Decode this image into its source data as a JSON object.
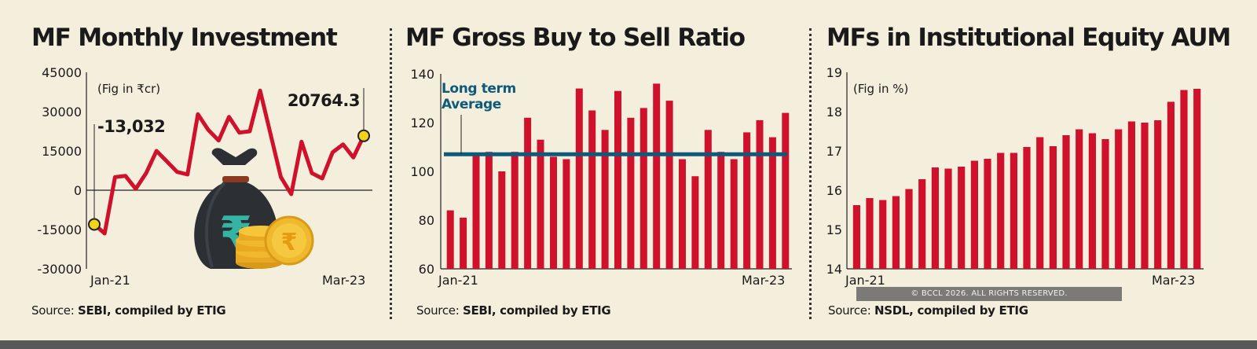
{
  "colors": {
    "bar": "#d0112b",
    "line": "#d0112b",
    "avg": "#0d5a7a",
    "marker": "#f2d21b",
    "text": "#1a1a1a"
  },
  "panels": [
    {
      "title": "MF Monthly Investment",
      "source_label": "Source:",
      "source_text": "SEBI, compiled by ETIG"
    },
    {
      "title": "MF Gross Buy to Sell Ratio",
      "source_label": "Source:",
      "source_text": "SEBI, compiled by ETIG"
    },
    {
      "title": "MFs in Institutional Equity AUM",
      "source_label": "Source:",
      "source_text": "NSDL, compiled by ETIG"
    }
  ],
  "copyright": "© BCCL 2026. ALL RIGHTS RESERVED.",
  "chart_data": [
    {
      "type": "line",
      "title": "MF Monthly Investment",
      "unit_note": "(Fig in ₹cr)",
      "ylim": [
        -30000,
        45000
      ],
      "yticks": [
        -30000,
        -15000,
        0,
        15000,
        30000,
        45000
      ],
      "ytick_labels": [
        "-30000",
        "-15000",
        "0",
        "15000",
        "30000",
        "45000"
      ],
      "x_start_label": "Jan-21",
      "x_end_label": "Mar-23",
      "annotation_start": "-13,032",
      "annotation_end": "20764.3",
      "values": [
        -13032,
        -16500,
        5000,
        5500,
        500,
        6500,
        15000,
        11000,
        7000,
        6000,
        29000,
        23000,
        19000,
        28000,
        22000,
        22500,
        38000,
        21500,
        5000,
        -1500,
        18500,
        6500,
        4500,
        14500,
        17500,
        12500,
        20764.3
      ]
    },
    {
      "type": "bar",
      "title": "MF Gross Buy to Sell Ratio",
      "ylim": [
        60,
        140
      ],
      "yticks": [
        60,
        80,
        100,
        120,
        140
      ],
      "ytick_labels": [
        "60",
        "80",
        "100",
        "120",
        "140"
      ],
      "x_start_label": "Jan-21",
      "x_end_label": "Mar-23",
      "reference_value": 107,
      "reference_label_line1": "Long term",
      "reference_label_line2": "Average",
      "values": [
        84,
        81,
        107,
        108,
        100,
        108,
        122,
        113,
        106,
        105,
        134,
        125,
        117,
        133,
        122,
        126,
        136,
        129,
        105,
        98,
        117,
        108,
        105,
        116,
        121,
        114,
        124
      ]
    },
    {
      "type": "bar",
      "title": "MFs in Institutional Equity AUM",
      "unit_note": "(Fig in %)",
      "ylim": [
        14,
        19
      ],
      "yticks": [
        14,
        15,
        16,
        17,
        18,
        19
      ],
      "ytick_labels": [
        "14",
        "15",
        "16",
        "17",
        "18",
        "19"
      ],
      "x_start_label": "Jan-21",
      "x_end_label": "Mar-23",
      "values": [
        15.62,
        15.8,
        15.75,
        15.85,
        16.03,
        16.28,
        16.58,
        16.55,
        16.6,
        16.75,
        16.8,
        16.95,
        16.95,
        17.1,
        17.35,
        17.12,
        17.4,
        17.55,
        17.45,
        17.3,
        17.55,
        17.75,
        17.72,
        17.78,
        18.25,
        18.55,
        18.58
      ]
    }
  ]
}
